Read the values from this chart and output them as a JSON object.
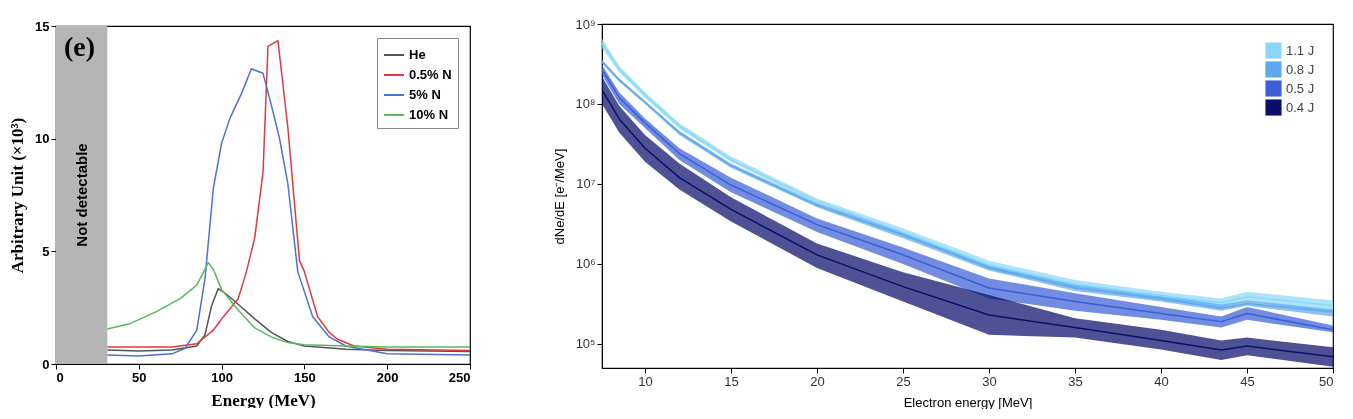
{
  "chart_data": [
    {
      "type": "line",
      "xlabel": "Energy (MeV)",
      "ylabel": "Arbitrary Unit (×10³)",
      "annotations": [
        "(e)"
      ],
      "xlim": [
        0,
        250
      ],
      "xticks": [
        0,
        50,
        100,
        150,
        200,
        250
      ],
      "ylim": [
        0,
        15
      ],
      "yticks": [
        0,
        5,
        10,
        15
      ],
      "legend": "top right",
      "bands": [
        {
          "axis": "x",
          "from": 0,
          "to": 31,
          "label": "Not detectable",
          "color": "#b5b5b5"
        }
      ],
      "series": [
        {
          "name": "He",
          "color": "#555555",
          "x": [
            31,
            50,
            70,
            85,
            90,
            94,
            98,
            102,
            110,
            120,
            130,
            140,
            150,
            175,
            200,
            250
          ],
          "values": [
            0.62,
            0.58,
            0.62,
            0.8,
            1.3,
            2.6,
            3.35,
            3.15,
            2.65,
            2.0,
            1.4,
            1.0,
            0.8,
            0.65,
            0.6,
            0.55
          ]
        },
        {
          "name": "0.5% N",
          "color": "#e03a3e",
          "x": [
            31,
            70,
            85,
            90,
            95,
            100,
            110,
            115,
            120,
            125,
            128,
            134,
            140,
            147,
            150,
            158,
            165,
            170,
            180,
            200,
            250
          ],
          "values": [
            0.75,
            0.75,
            0.9,
            1.2,
            1.5,
            2.0,
            2.9,
            4.1,
            5.6,
            8.5,
            14.1,
            14.35,
            10.5,
            4.6,
            4.1,
            2.1,
            1.4,
            1.1,
            0.8,
            0.65,
            0.6
          ]
        },
        {
          "name": "5% N",
          "color": "#4a73d6",
          "x": [
            31,
            50,
            70,
            78,
            85,
            90,
            95,
            100,
            105,
            112,
            118,
            125,
            130,
            135,
            140,
            146,
            155,
            165,
            175,
            200,
            250
          ],
          "values": [
            0.4,
            0.35,
            0.45,
            0.7,
            1.5,
            3.8,
            7.8,
            9.8,
            10.9,
            12.0,
            13.1,
            12.9,
            11.5,
            10.0,
            8.0,
            4.1,
            2.1,
            1.2,
            0.8,
            0.45,
            0.4
          ]
        },
        {
          "name": "10% N",
          "color": "#5cb85c",
          "x": [
            31,
            45,
            60,
            75,
            85,
            92,
            95,
            100,
            110,
            120,
            130,
            140,
            150,
            175,
            200,
            250
          ],
          "values": [
            1.55,
            1.8,
            2.3,
            2.9,
            3.5,
            4.5,
            4.2,
            3.3,
            2.4,
            1.6,
            1.2,
            0.95,
            0.85,
            0.8,
            0.75,
            0.75
          ]
        }
      ]
    },
    {
      "type": "line",
      "xlabel": "Electron energy [MeV]",
      "ylabel": "dNe/dE [e⁻/MeV]",
      "log": "y",
      "xlim": [
        7.5,
        50
      ],
      "xticks": [
        10,
        15,
        20,
        25,
        30,
        35,
        40,
        45,
        50
      ],
      "ylim": [
        50000,
        1000000000
      ],
      "yticks": [
        {
          "value": 100000,
          "label": "10⁵"
        },
        {
          "value": 1000000,
          "label": "10⁶"
        },
        {
          "value": 10000000,
          "label": "10⁷"
        },
        {
          "value": 100000000,
          "label": "10⁸"
        },
        {
          "value": 1000000000,
          "label": "10⁹"
        }
      ],
      "legend": "top right",
      "series": [
        {
          "name": "1.1 J",
          "color": "#8ad8f7",
          "x": [
            7.5,
            8.5,
            10,
            12,
            15,
            20,
            25,
            30,
            35,
            40,
            43.5,
            45,
            50
          ],
          "values": [
            580000000,
            270000000,
            130000000,
            53000000,
            20000000,
            6100000,
            2500000,
            970000,
            560000,
            400000,
            330000,
            390000,
            300000
          ],
          "lower": [
            500000000,
            250000000,
            120000000,
            49000000,
            19000000,
            5600000,
            2300000,
            850000,
            500000,
            350000,
            290000,
            340000,
            250000
          ],
          "upper": [
            660000000,
            300000000,
            140000000,
            58000000,
            22000000,
            6600000,
            2800000,
            1100000,
            630000,
            450000,
            370000,
            450000,
            350000
          ]
        },
        {
          "name": "0.8 J",
          "color": "#5ea8ef",
          "x": [
            7.5,
            8.5,
            10,
            12,
            15,
            20,
            25,
            30,
            35,
            40,
            43.5,
            45,
            50
          ],
          "values": [
            340000000,
            200000000,
            105000000,
            44000000,
            17000000,
            5400000,
            2300000,
            900000,
            500000,
            370000,
            280000,
            320000,
            250000
          ],
          "lower": [
            320000000,
            190000000,
            100000000,
            41000000,
            16000000,
            5100000,
            2100000,
            830000,
            460000,
            340000,
            260000,
            300000,
            220000
          ],
          "upper": [
            360000000,
            210000000,
            110000000,
            46000000,
            18000000,
            5800000,
            2500000,
            980000,
            550000,
            410000,
            310000,
            350000,
            270000
          ]
        },
        {
          "name": "0.5 J",
          "color": "#3a5fd6",
          "x": [
            7.5,
            8.5,
            10,
            12,
            15,
            20,
            25,
            30,
            35,
            40,
            43.5,
            45,
            50
          ],
          "values": [
            270000000,
            120000000,
            58000000,
            24000000,
            9700000,
            3100000,
            1300000,
            500000,
            340000,
            240000,
            190000,
            240000,
            150000
          ],
          "lower": [
            230000000,
            100000000,
            50000000,
            20000000,
            7900000,
            2500000,
            1000000,
            370000,
            260000,
            200000,
            160000,
            200000,
            140000
          ],
          "upper": [
            310000000,
            140000000,
            66000000,
            28000000,
            12000000,
            3700000,
            1600000,
            660000,
            430000,
            290000,
            220000,
            290000,
            170000
          ]
        },
        {
          "name": "0.4 J",
          "color": "#0a0f6b",
          "x": [
            7.5,
            8.5,
            10,
            12,
            15,
            20,
            25,
            30,
            35,
            40,
            43.5,
            45,
            50
          ],
          "values": [
            150000000,
            65000000,
            28000000,
            12000000,
            4800000,
            1300000,
            520000,
            230000,
            160000,
            110000,
            84000,
            94000,
            69000
          ],
          "lower": [
            100000000,
            44000000,
            19000000,
            8500000,
            3400000,
            890000,
            340000,
            130000,
            120000,
            85000,
            63000,
            72000,
            52000
          ],
          "upper": [
            220000000,
            95000000,
            41000000,
            18000000,
            6800000,
            1800000,
            790000,
            410000,
            210000,
            150000,
            110000,
            120000,
            91000
          ]
        }
      ]
    }
  ]
}
